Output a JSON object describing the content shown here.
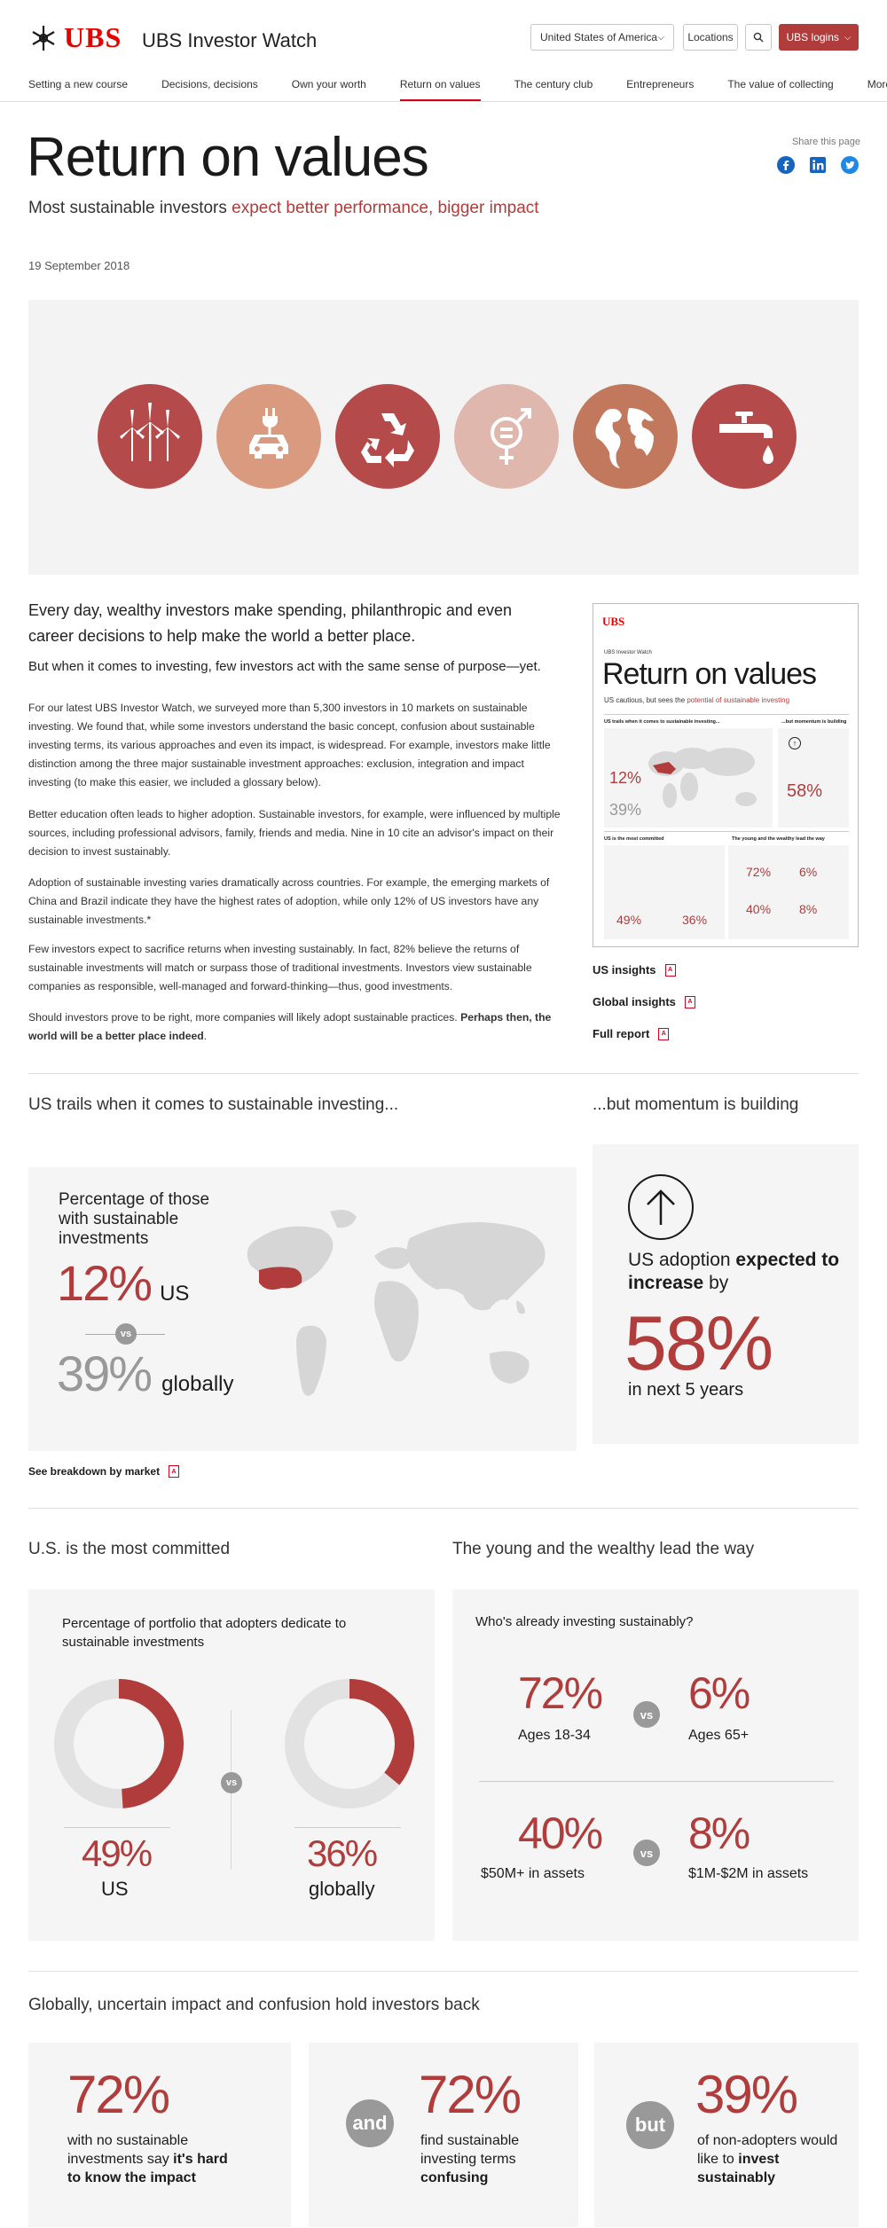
{
  "header": {
    "brand": "UBS",
    "site_title": "UBS Investor Watch",
    "country_select": "United States of America",
    "locations_label": "Locations",
    "login_label": "UBS logins"
  },
  "nav": {
    "items": [
      "Setting a new course",
      "Decisions, decisions",
      "Own your worth",
      "Return on values",
      "The century club",
      "Entrepreneurs",
      "The value of collecting",
      "More"
    ]
  },
  "page": {
    "title": "Return on values",
    "subtitle_plain": "Most sustainable investors ",
    "subtitle_highlight": "expect better performance, bigger impact",
    "share_label": "Share this page",
    "date": "19 September 2018"
  },
  "hero_icons": [
    "wind-turbine-icon",
    "electric-car-icon",
    "recycle-icon",
    "gender-equality-icon",
    "globe-icon",
    "water-tap-icon"
  ],
  "intro": {
    "lead1": "Every day, wealthy investors make spending, philanthropic and even career decisions to help make the world a better place.",
    "lead2": "But when it comes to investing, few investors act with the same sense of purpose—yet.",
    "p1": "For our latest UBS Investor Watch, we surveyed more than 5,300 investors in 10 markets on sustainable investing. We found that, while some investors understand the basic concept, confusion about sustainable investing terms, its various approaches and even its impact, is widespread. For example, investors make little distinction among the three major sustainable investment approaches: exclusion, integration and impact investing (to make this easier, we included a glossary below).",
    "p2": "Better education often leads to higher adoption. Sustainable investors, for example, were influenced by multiple sources, including professional advisors, family, friends and media. Nine in 10 cite an advisor's impact on their decision to invest sustainably.",
    "p3": "Adoption of sustainable investing varies dramatically across countries. For example, the emerging markets of China and Brazil indicate they have the highest rates of adoption, while only 12% of US investors have any sustainable investments.*",
    "p4": "Few investors expect to sacrifice returns when investing sustainably. In fact, 82% believe the returns of sustainable investments will match or surpass those of traditional investments. Investors view sustainable companies as responsible, well-managed and forward-thinking—thus, good investments.",
    "p5_plain": "Should investors prove to be right, more companies will likely adopt sustainable practices. ",
    "p5_bold": "Perhaps then, the world will be a better place indeed"
  },
  "thumbnail": {
    "brand": "UBS",
    "kicker": "UBS Investor Watch",
    "title": "Return on values",
    "subtitle_plain": "US cautious, but sees the ",
    "subtitle_highlight": "potential of sustainable investing",
    "sec1": "US trails when it comes to sustainable investing...",
    "sec2": "...but momentum is building",
    "sec3": "US is the most committed",
    "sec4": "The young and the wealthy lead the way",
    "n12": "12%",
    "n39": "39%",
    "n58": "58%",
    "n49": "49%",
    "n36": "36%",
    "n72": "72%",
    "n6": "6%",
    "n40": "40%",
    "n8": "8%"
  },
  "downloads": [
    "US insights",
    "Global insights",
    "Full report"
  ],
  "section_trails": {
    "heading_left": "US trails when it comes to sustainable investing...",
    "heading_right": "...but momentum is building",
    "map_label": "Percentage of those with sustainable investments",
    "us_value": "12%",
    "us_label": "US",
    "vs": "vs",
    "global_value": "39%",
    "global_label": "globally",
    "adoption_plain1": "US adoption ",
    "adoption_bold": "expected to increase",
    "adoption_plain2": " by",
    "adoption_value": "58%",
    "adoption_sub": "in next 5 years",
    "breakdown_link": "See breakdown by market"
  },
  "section_committed": {
    "heading_left": "U.S. is the most committed",
    "heading_right": "The young and the wealthy lead the way",
    "donut_label": "Percentage of portfolio that adopters dedicate to sustainable investments",
    "us_value": "49%",
    "us_label": "US",
    "global_value": "36%",
    "global_label": "globally",
    "vs": "vs",
    "young_question": "Who's already investing sustainably?",
    "v72": "72%",
    "l72": "Ages 18-34",
    "v6": "6%",
    "l6": "Ages 65+",
    "v40": "40%",
    "l40": "$50M+ in assets",
    "v8": "8%",
    "l8": "$1M-$2M in assets"
  },
  "section_confusion": {
    "heading": "Globally, uncertain impact and confusion hold investors back",
    "c1_value": "72%",
    "c1_plain": "with no sustainable investments say ",
    "c1_bold": "it's hard to know the impact",
    "c2_badge": "and",
    "c2_value": "72%",
    "c2_plain": "find sustainable investing terms ",
    "c2_bold": "confusing",
    "c3_badge": "but",
    "c3_value": "39%",
    "c3_plain": "of non-adopters would like to ",
    "c3_bold": "invest sustainably"
  },
  "colors": {
    "accent_red": "#b03c3c",
    "brand_red": "#e60000",
    "hero_icon_1": "#b54a4a",
    "hero_icon_2": "#d99a80",
    "hero_icon_3": "#b54a4a",
    "hero_icon_4": "#e0b7ad",
    "hero_icon_5": "#c2785c",
    "hero_icon_6": "#b54a4a"
  },
  "chart_data": [
    {
      "type": "pie",
      "title": "Percentage of portfolio that adopters dedicate to sustainable investments",
      "categories": [
        "US"
      ],
      "values": [
        49
      ]
    },
    {
      "type": "pie",
      "title": "",
      "categories": [
        "globally"
      ],
      "values": [
        36
      ]
    }
  ]
}
